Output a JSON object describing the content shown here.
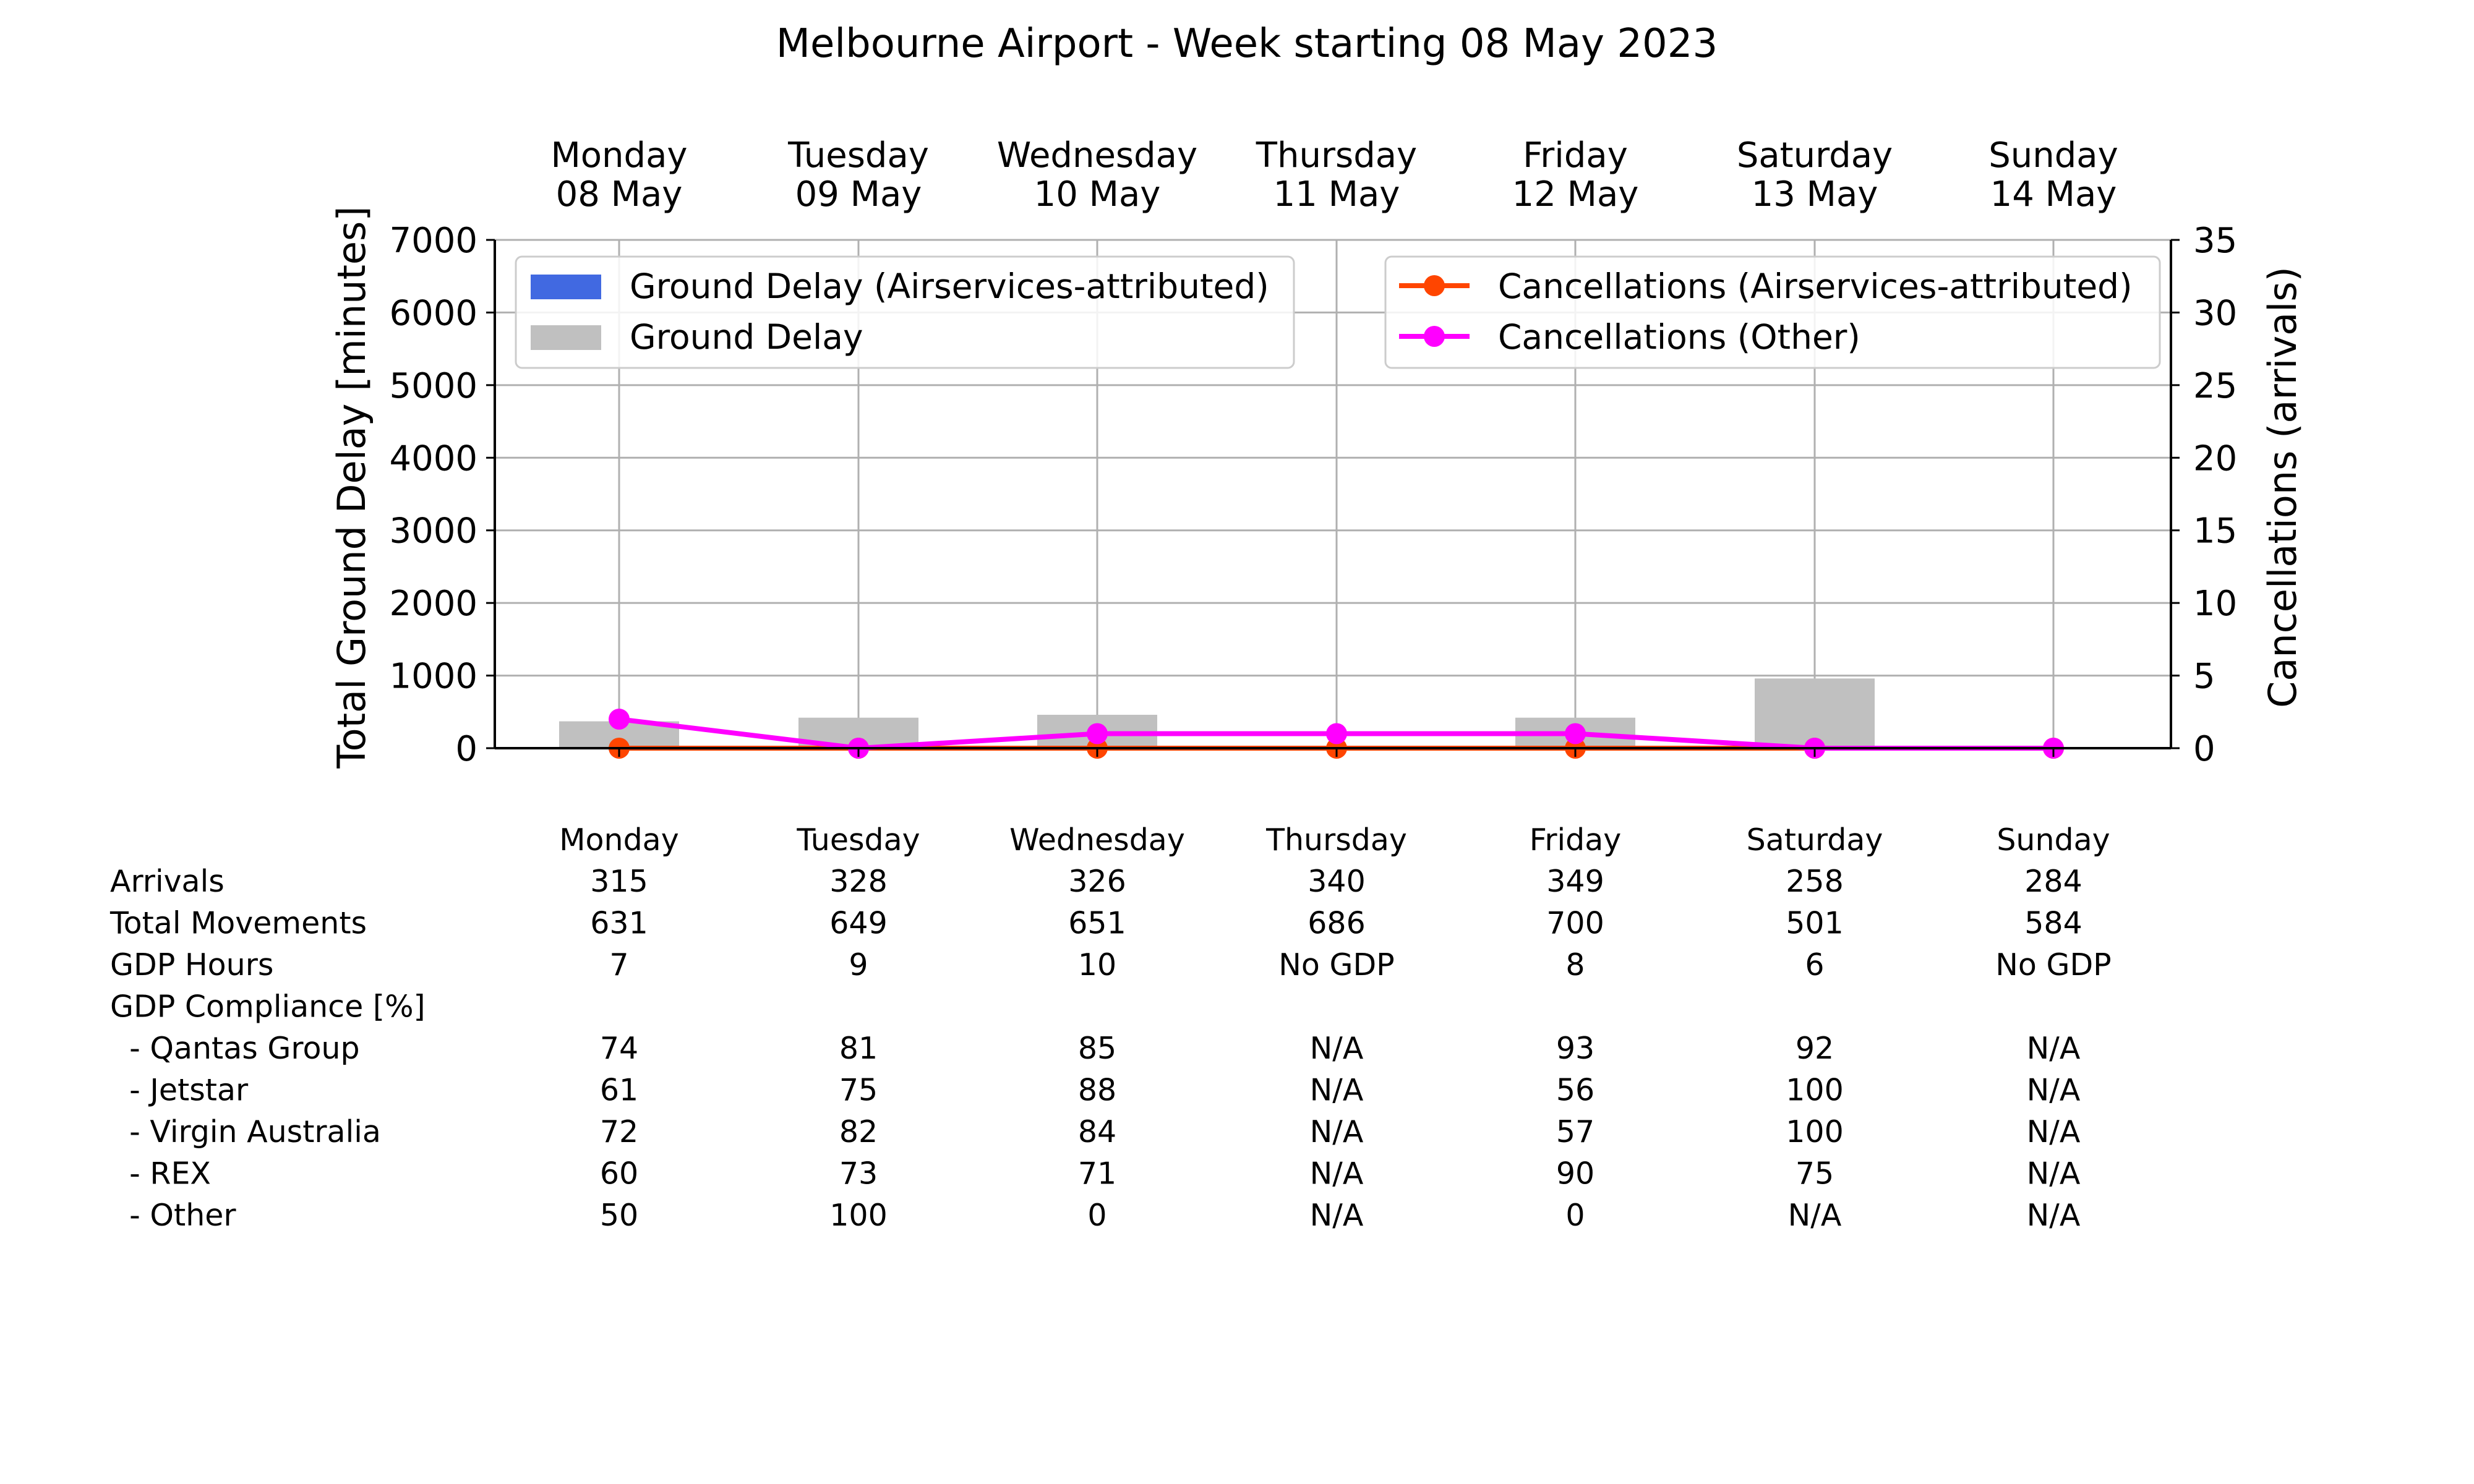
{
  "title": "Melbourne Airport - Week starting 08 May 2023",
  "days": [
    {
      "day": "Monday",
      "date": "08 May"
    },
    {
      "day": "Tuesday",
      "date": "09 May"
    },
    {
      "day": "Wednesday",
      "date": "10 May"
    },
    {
      "day": "Thursday",
      "date": "11 May"
    },
    {
      "day": "Friday",
      "date": "12 May"
    },
    {
      "day": "Saturday",
      "date": "13 May"
    },
    {
      "day": "Sunday",
      "date": "14 May"
    }
  ],
  "chart_data": {
    "type": "bar",
    "categories": [
      "Monday 08 May",
      "Tuesday 09 May",
      "Wednesday 10 May",
      "Thursday 11 May",
      "Friday 12 May",
      "Saturday 13 May",
      "Sunday 14 May"
    ],
    "ylabel": "Total Ground Delay [minutes]",
    "y2label": "Cancellations (arrivals)",
    "ylim": [
      0,
      7000
    ],
    "y2lim": [
      0,
      35
    ],
    "yticks": [
      "0",
      "1000",
      "2000",
      "3000",
      "4000",
      "5000",
      "6000",
      "7000"
    ],
    "y2ticks": [
      "0",
      "5",
      "10",
      "15",
      "20",
      "25",
      "30",
      "35"
    ],
    "grid": true,
    "series": [
      {
        "name": "Ground Delay (Airservices-attributed)",
        "kind": "bar",
        "axis": "left",
        "color": "#4169e1",
        "values": [
          0,
          0,
          0,
          0,
          0,
          0,
          0
        ]
      },
      {
        "name": "Ground Delay",
        "kind": "bar",
        "axis": "left",
        "color": "#c0c0c0",
        "values": [
          370,
          420,
          460,
          0,
          420,
          960,
          0
        ]
      },
      {
        "name": "Cancellations (Airservices-attributed)",
        "kind": "line",
        "axis": "right",
        "color": "#ff4500",
        "values": [
          0,
          0,
          0,
          0,
          0,
          0,
          0
        ]
      },
      {
        "name": "Cancellations (Other)",
        "kind": "line",
        "axis": "right",
        "color": "#ff00ff",
        "values": [
          2,
          0,
          1,
          1,
          1,
          0,
          0
        ]
      }
    ],
    "legend_left": "top-left",
    "legend_right": "top-right"
  },
  "table": {
    "columns": [
      "Monday",
      "Tuesday",
      "Wednesday",
      "Thursday",
      "Friday",
      "Saturday",
      "Sunday"
    ],
    "rows": [
      {
        "label": "Arrivals",
        "values": [
          "315",
          "328",
          "326",
          "340",
          "349",
          "258",
          "284"
        ]
      },
      {
        "label": "Total Movements",
        "values": [
          "631",
          "649",
          "651",
          "686",
          "700",
          "501",
          "584"
        ]
      },
      {
        "label": "GDP Hours",
        "values": [
          "7",
          "9",
          "10",
          "No GDP",
          "8",
          "6",
          "No GDP"
        ]
      },
      {
        "label": "GDP Compliance [%]",
        "values": [
          "",
          "",
          "",
          "",
          "",
          "",
          ""
        ]
      },
      {
        "label": "  - Qantas Group",
        "values": [
          "74",
          "81",
          "85",
          "N/A",
          "93",
          "92",
          "N/A"
        ]
      },
      {
        "label": "  - Jetstar",
        "values": [
          "61",
          "75",
          "88",
          "N/A",
          "56",
          "100",
          "N/A"
        ]
      },
      {
        "label": "  - Virgin Australia",
        "values": [
          "72",
          "82",
          "84",
          "N/A",
          "57",
          "100",
          "N/A"
        ]
      },
      {
        "label": "  - REX",
        "values": [
          "60",
          "73",
          "71",
          "N/A",
          "90",
          "75",
          "N/A"
        ]
      },
      {
        "label": "  - Other",
        "values": [
          "50",
          "100",
          "0",
          "N/A",
          "0",
          "N/A",
          "N/A"
        ]
      }
    ]
  }
}
